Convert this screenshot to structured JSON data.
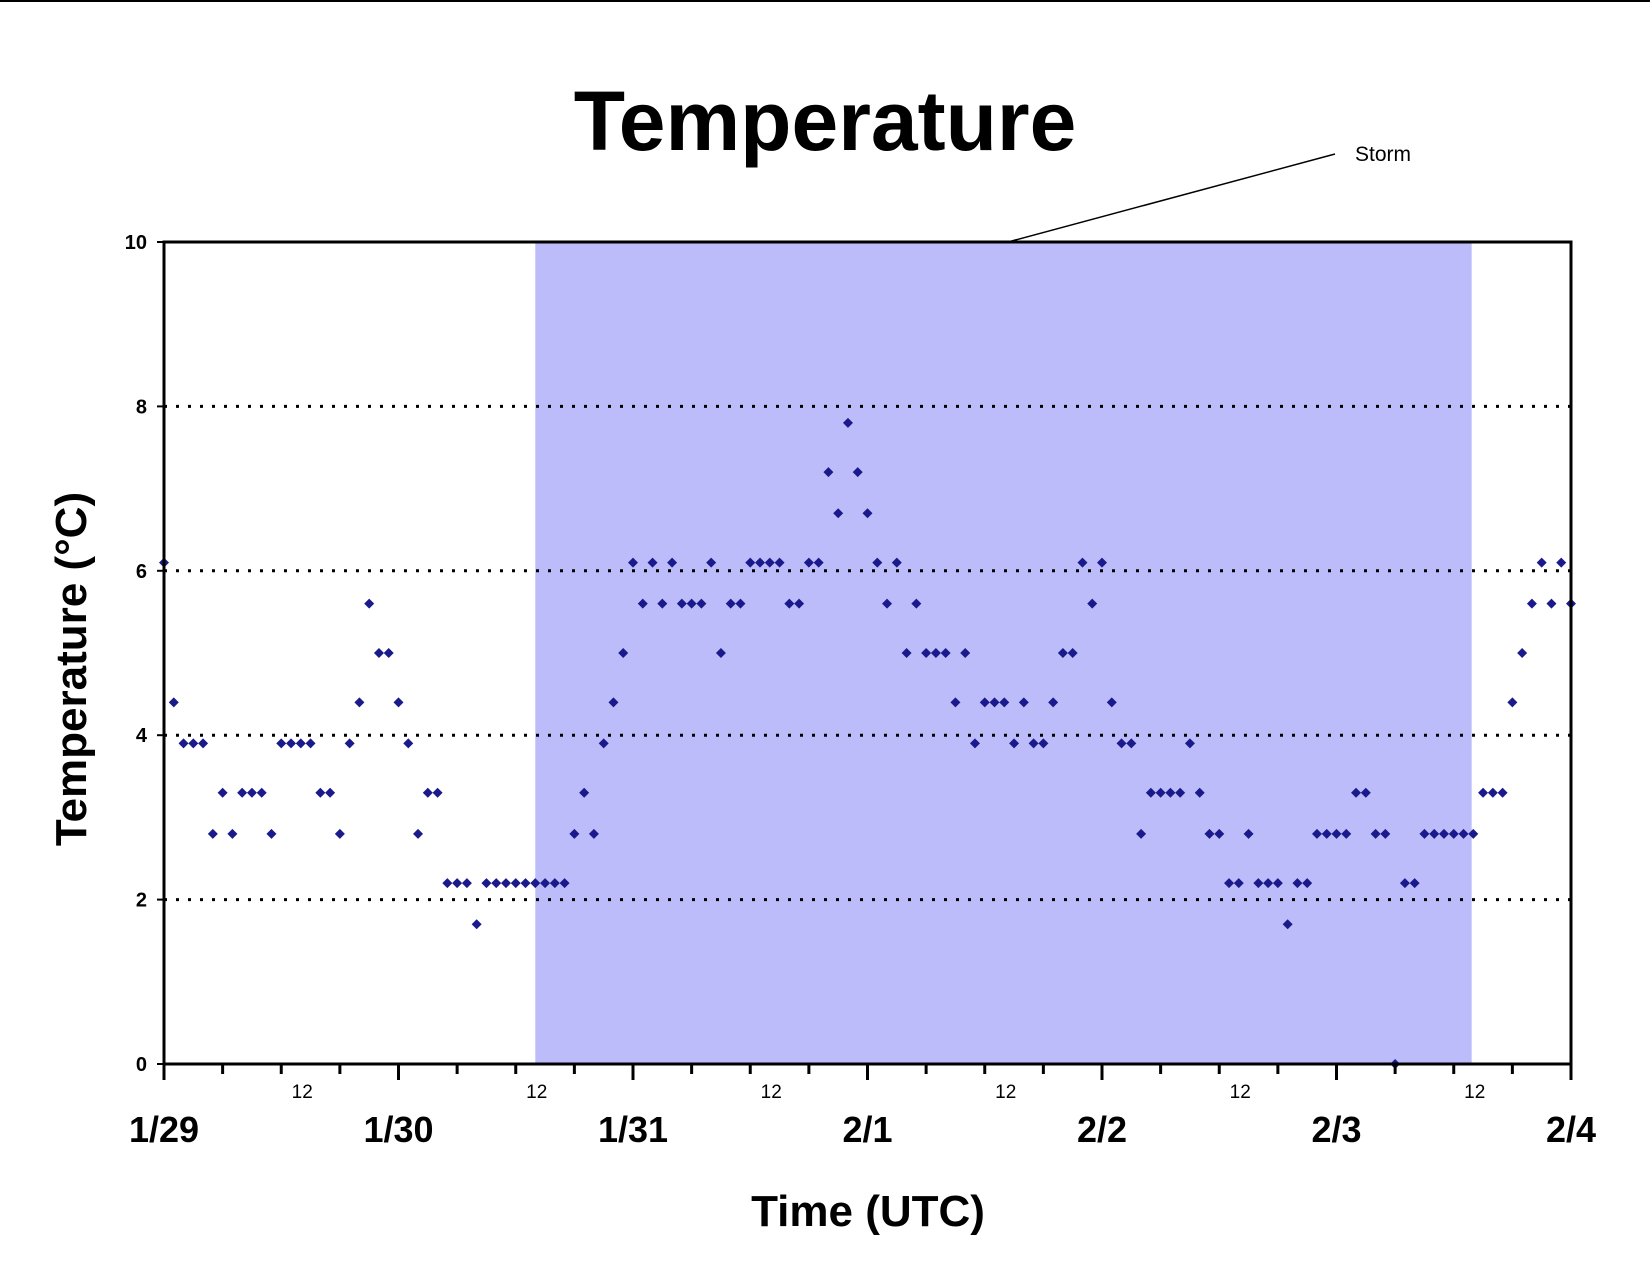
{
  "chart_data": {
    "type": "scatter",
    "title": "Temperature",
    "xlabel": "Time (UTC)",
    "ylabel": "Temperature (°C)",
    "ylim": [
      0,
      10
    ],
    "yticks": [
      0,
      2,
      4,
      6,
      8,
      10
    ],
    "grid": "horizontal dotted at 2, 4, 6, 8",
    "xlim": [
      "1/29 00:00",
      "2/4 00:00"
    ],
    "x_day_labels": [
      "1/29",
      "1/30",
      "1/31",
      "2/1",
      "2/2",
      "2/3",
      "2/4"
    ],
    "x_hour_label": "12",
    "marker_color": "#1a1a8c",
    "storm": {
      "label": "Storm",
      "start": "1/30 14:00",
      "end": "2/3 13:50",
      "color": "#bcbcfa"
    },
    "series": [
      {
        "values": [
          [
            "1/29 00:00",
            6.1
          ],
          [
            "1/29 01:00",
            4.4
          ],
          [
            "1/29 02:00",
            3.9
          ],
          [
            "1/29 03:00",
            3.9
          ],
          [
            "1/29 04:00",
            3.9
          ],
          [
            "1/29 05:00",
            2.8
          ],
          [
            "1/29 06:00",
            3.3
          ],
          [
            "1/29 07:00",
            2.8
          ],
          [
            "1/29 08:00",
            3.3
          ],
          [
            "1/29 09:00",
            3.3
          ],
          [
            "1/29 10:00",
            3.3
          ],
          [
            "1/29 11:00",
            2.8
          ],
          [
            "1/29 12:00",
            3.9
          ],
          [
            "1/29 13:00",
            3.9
          ],
          [
            "1/29 14:00",
            3.9
          ],
          [
            "1/29 15:00",
            3.9
          ],
          [
            "1/29 16:00",
            3.3
          ],
          [
            "1/29 17:00",
            3.3
          ],
          [
            "1/29 18:00",
            2.8
          ],
          [
            "1/29 19:00",
            3.9
          ],
          [
            "1/29 20:00",
            4.4
          ],
          [
            "1/29 21:00",
            5.6
          ],
          [
            "1/29 22:00",
            5.0
          ],
          [
            "1/29 23:00",
            5.0
          ],
          [
            "1/30 00:00",
            4.4
          ],
          [
            "1/30 01:00",
            3.9
          ],
          [
            "1/30 02:00",
            2.8
          ],
          [
            "1/30 03:00",
            3.3
          ],
          [
            "1/30 04:00",
            3.3
          ],
          [
            "1/30 05:00",
            2.2
          ],
          [
            "1/30 06:00",
            2.2
          ],
          [
            "1/30 07:00",
            2.2
          ],
          [
            "1/30 08:00",
            1.7
          ],
          [
            "1/30 09:00",
            2.2
          ],
          [
            "1/30 10:00",
            2.2
          ],
          [
            "1/30 11:00",
            2.2
          ],
          [
            "1/30 12:00",
            2.2
          ],
          [
            "1/30 13:00",
            2.2
          ],
          [
            "1/30 14:00",
            2.2
          ],
          [
            "1/30 15:00",
            2.2
          ],
          [
            "1/30 16:00",
            2.2
          ],
          [
            "1/30 17:00",
            2.2
          ],
          [
            "1/30 18:00",
            2.8
          ],
          [
            "1/30 19:00",
            3.3
          ],
          [
            "1/30 20:00",
            2.8
          ],
          [
            "1/30 21:00",
            3.9
          ],
          [
            "1/30 22:00",
            4.4
          ],
          [
            "1/30 23:00",
            5.0
          ],
          [
            "1/31 00:00",
            6.1
          ],
          [
            "1/31 01:00",
            5.6
          ],
          [
            "1/31 02:00",
            6.1
          ],
          [
            "1/31 03:00",
            5.6
          ],
          [
            "1/31 04:00",
            6.1
          ],
          [
            "1/31 05:00",
            5.6
          ],
          [
            "1/31 06:00",
            5.6
          ],
          [
            "1/31 07:00",
            5.6
          ],
          [
            "1/31 08:00",
            6.1
          ],
          [
            "1/31 09:00",
            5.0
          ],
          [
            "1/31 10:00",
            5.6
          ],
          [
            "1/31 11:00",
            5.6
          ],
          [
            "1/31 12:00",
            6.1
          ],
          [
            "1/31 13:00",
            6.1
          ],
          [
            "1/31 14:00",
            6.1
          ],
          [
            "1/31 15:00",
            6.1
          ],
          [
            "1/31 16:00",
            5.6
          ],
          [
            "1/31 17:00",
            5.6
          ],
          [
            "1/31 18:00",
            6.1
          ],
          [
            "1/31 19:00",
            6.1
          ],
          [
            "1/31 20:00",
            7.2
          ],
          [
            "1/31 21:00",
            6.7
          ],
          [
            "1/31 22:00",
            7.8
          ],
          [
            "1/31 23:00",
            7.2
          ],
          [
            "2/1 00:00",
            6.7
          ],
          [
            "2/1 01:00",
            6.1
          ],
          [
            "2/1 02:00",
            5.6
          ],
          [
            "2/1 03:00",
            6.1
          ],
          [
            "2/1 04:00",
            5.0
          ],
          [
            "2/1 05:00",
            5.6
          ],
          [
            "2/1 06:00",
            5.0
          ],
          [
            "2/1 07:00",
            5.0
          ],
          [
            "2/1 08:00",
            5.0
          ],
          [
            "2/1 09:00",
            4.4
          ],
          [
            "2/1 10:00",
            5.0
          ],
          [
            "2/1 11:00",
            3.9
          ],
          [
            "2/1 12:00",
            4.4
          ],
          [
            "2/1 13:00",
            4.4
          ],
          [
            "2/1 14:00",
            4.4
          ],
          [
            "2/1 15:00",
            3.9
          ],
          [
            "2/1 16:00",
            4.4
          ],
          [
            "2/1 17:00",
            3.9
          ],
          [
            "2/1 18:00",
            3.9
          ],
          [
            "2/1 19:00",
            4.4
          ],
          [
            "2/1 20:00",
            5.0
          ],
          [
            "2/1 21:00",
            5.0
          ],
          [
            "2/1 22:00",
            6.1
          ],
          [
            "2/1 23:00",
            5.6
          ],
          [
            "2/2 00:00",
            6.1
          ],
          [
            "2/2 01:00",
            4.4
          ],
          [
            "2/2 02:00",
            3.9
          ],
          [
            "2/2 03:00",
            3.9
          ],
          [
            "2/2 04:00",
            2.8
          ],
          [
            "2/2 05:00",
            3.3
          ],
          [
            "2/2 06:00",
            3.3
          ],
          [
            "2/2 07:00",
            3.3
          ],
          [
            "2/2 08:00",
            3.3
          ],
          [
            "2/2 09:00",
            3.9
          ],
          [
            "2/2 10:00",
            3.3
          ],
          [
            "2/2 11:00",
            2.8
          ],
          [
            "2/2 12:00",
            2.8
          ],
          [
            "2/2 13:00",
            2.2
          ],
          [
            "2/2 14:00",
            2.2
          ],
          [
            "2/2 15:00",
            2.8
          ],
          [
            "2/2 16:00",
            2.2
          ],
          [
            "2/2 17:00",
            2.2
          ],
          [
            "2/2 18:00",
            2.2
          ],
          [
            "2/2 19:00",
            1.7
          ],
          [
            "2/2 20:00",
            2.2
          ],
          [
            "2/2 21:00",
            2.2
          ],
          [
            "2/2 22:00",
            2.8
          ],
          [
            "2/2 23:00",
            2.8
          ],
          [
            "2/3 00:00",
            2.8
          ],
          [
            "2/3 01:00",
            2.8
          ],
          [
            "2/3 02:00",
            3.3
          ],
          [
            "2/3 03:00",
            3.3
          ],
          [
            "2/3 04:00",
            2.8
          ],
          [
            "2/3 05:00",
            2.8
          ],
          [
            "2/3 06:00",
            0.0
          ],
          [
            "2/3 07:00",
            2.2
          ],
          [
            "2/3 08:00",
            2.2
          ],
          [
            "2/3 09:00",
            2.8
          ],
          [
            "2/3 10:00",
            2.8
          ],
          [
            "2/3 11:00",
            2.8
          ],
          [
            "2/3 12:00",
            2.8
          ],
          [
            "2/3 13:00",
            2.8
          ],
          [
            "2/3 14:00",
            2.8
          ],
          [
            "2/3 15:00",
            3.3
          ],
          [
            "2/3 16:00",
            3.3
          ],
          [
            "2/3 17:00",
            3.3
          ],
          [
            "2/3 18:00",
            4.4
          ],
          [
            "2/3 19:00",
            5.0
          ],
          [
            "2/3 20:00",
            5.6
          ],
          [
            "2/3 21:00",
            6.1
          ],
          [
            "2/3 22:00",
            5.6
          ],
          [
            "2/3 23:00",
            6.1
          ],
          [
            "2/4 00:00",
            5.6
          ]
        ]
      }
    ]
  }
}
